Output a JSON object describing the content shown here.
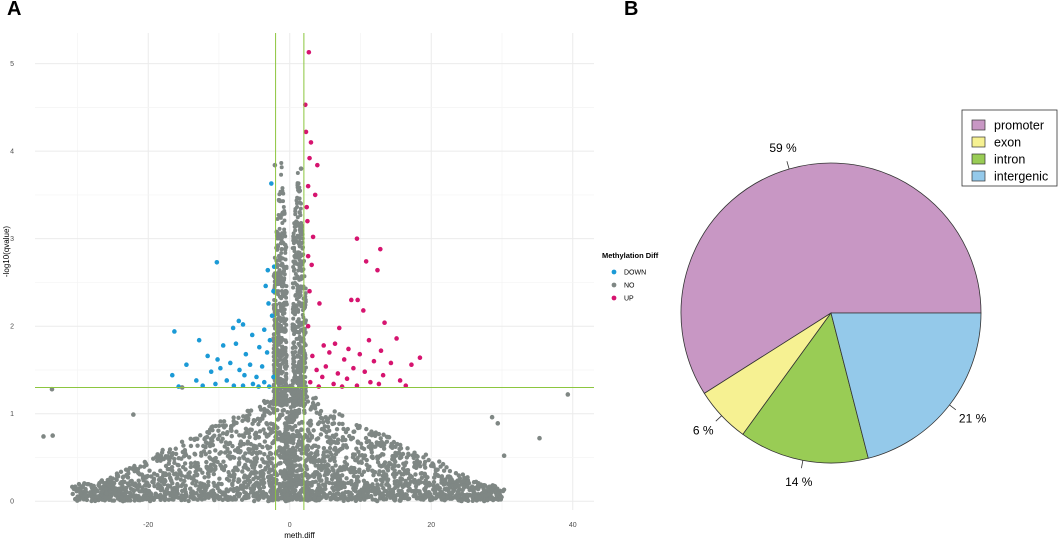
{
  "panels": {
    "a": "A",
    "b": "B"
  },
  "chart_data": [
    {
      "type": "scatter",
      "title": "",
      "xlabel": "meth.diff",
      "ylabel": "-log10(qvalue)",
      "xlim": [
        -36,
        43
      ],
      "ylim": [
        -0.1,
        5.35
      ],
      "x_ticks": [
        -20,
        0,
        20,
        40
      ],
      "y_ticks": [
        0,
        1,
        2,
        3,
        4,
        5
      ],
      "grid": true,
      "thresholds": {
        "vlines": [
          -2,
          2
        ],
        "hline": 1.3
      },
      "threshold_color": "#8cc63f",
      "legend": {
        "title": "Methylation Diff",
        "placement": "right",
        "entries": [
          {
            "label": "DOWN",
            "color": "#1b9ad6"
          },
          {
            "label": "NO",
            "color": "#7f8784"
          },
          {
            "label": "UP",
            "color": "#d6146f"
          }
        ]
      },
      "series": [
        {
          "name": "DOWN",
          "color": "#1b9ad6",
          "points": [
            [
              -2.6,
              3.63
            ],
            [
              -10.3,
              2.73
            ],
            [
              -2.2,
              2.68
            ],
            [
              -3.1,
              2.64
            ],
            [
              -3.4,
              2.46
            ],
            [
              -2.3,
              2.4
            ],
            [
              -3.0,
              2.26
            ],
            [
              -2.5,
              2.12
            ],
            [
              -7.2,
              2.06
            ],
            [
              -6.6,
              2.02
            ],
            [
              -8.0,
              1.98
            ],
            [
              -3.6,
              1.96
            ],
            [
              -16.3,
              1.94
            ],
            [
              -5.3,
              1.9
            ],
            [
              -12.8,
              1.84
            ],
            [
              -2.8,
              1.84
            ],
            [
              -7.6,
              1.8
            ],
            [
              -9.4,
              1.78
            ],
            [
              -4.3,
              1.76
            ],
            [
              -3.2,
              1.7
            ],
            [
              -6.2,
              1.68
            ],
            [
              -11.6,
              1.66
            ],
            [
              -10.2,
              1.62
            ],
            [
              -8.4,
              1.58
            ],
            [
              -14.6,
              1.56
            ],
            [
              -5.6,
              1.56
            ],
            [
              -3.9,
              1.54
            ],
            [
              -9.8,
              1.52
            ],
            [
              -7.1,
              1.5
            ],
            [
              -11.1,
              1.48
            ],
            [
              -16.6,
              1.44
            ],
            [
              -6.4,
              1.44
            ],
            [
              -4.7,
              1.42
            ],
            [
              -2.3,
              1.42
            ],
            [
              -13.2,
              1.38
            ],
            [
              -8.9,
              1.38
            ],
            [
              -3.6,
              1.36
            ],
            [
              -5.2,
              1.34
            ],
            [
              -10.5,
              1.34
            ],
            [
              -7.9,
              1.32
            ],
            [
              -12.3,
              1.32
            ],
            [
              -15.7,
              1.31
            ],
            [
              -2.9,
              1.31
            ],
            [
              -6.6,
              1.32
            ],
            [
              -4.4,
              1.31
            ]
          ]
        },
        {
          "name": "UP",
          "color": "#d6146f",
          "points": [
            [
              2.7,
              5.13
            ],
            [
              2.2,
              4.53
            ],
            [
              2.3,
              4.22
            ],
            [
              3.0,
              4.1
            ],
            [
              2.8,
              3.92
            ],
            [
              3.9,
              3.84
            ],
            [
              2.6,
              3.6
            ],
            [
              3.6,
              3.5
            ],
            [
              2.4,
              3.36
            ],
            [
              2.5,
              3.2
            ],
            [
              3.3,
              3.02
            ],
            [
              9.5,
              3.0
            ],
            [
              12.8,
              2.88
            ],
            [
              2.6,
              2.8
            ],
            [
              10.8,
              2.74
            ],
            [
              3.1,
              2.7
            ],
            [
              12.4,
              2.64
            ],
            [
              2.8,
              2.4
            ],
            [
              8.7,
              2.3
            ],
            [
              9.6,
              2.3
            ],
            [
              4.2,
              2.26
            ],
            [
              10.4,
              2.18
            ],
            [
              13.4,
              2.04
            ],
            [
              2.6,
              2.0
            ],
            [
              7.0,
              1.98
            ],
            [
              15.1,
              1.86
            ],
            [
              11.2,
              1.84
            ],
            [
              6.4,
              1.8
            ],
            [
              4.8,
              1.78
            ],
            [
              8.3,
              1.74
            ],
            [
              12.9,
              1.72
            ],
            [
              5.6,
              1.7
            ],
            [
              9.9,
              1.68
            ],
            [
              3.2,
              1.66
            ],
            [
              18.4,
              1.64
            ],
            [
              7.7,
              1.62
            ],
            [
              11.9,
              1.6
            ],
            [
              14.3,
              1.58
            ],
            [
              17.2,
              1.56
            ],
            [
              5.1,
              1.54
            ],
            [
              9.0,
              1.52
            ],
            [
              3.8,
              1.5
            ],
            [
              10.6,
              1.48
            ],
            [
              6.8,
              1.46
            ],
            [
              13.2,
              1.44
            ],
            [
              4.6,
              1.42
            ],
            [
              8.1,
              1.4
            ],
            [
              15.6,
              1.38
            ],
            [
              11.4,
              1.36
            ],
            [
              2.9,
              1.36
            ],
            [
              6.2,
              1.34
            ],
            [
              12.6,
              1.34
            ],
            [
              9.5,
              1.32
            ],
            [
              16.4,
              1.32
            ],
            [
              4.1,
              1.31
            ],
            [
              7.4,
              1.31
            ]
          ]
        },
        {
          "name": "NO",
          "color": "#7f8784",
          "points": [
            [
              -33.6,
              1.28
            ],
            [
              -22.1,
              0.99
            ],
            [
              -34.8,
              0.74
            ],
            [
              -33.5,
              0.75
            ],
            [
              -15.2,
              1.3
            ],
            [
              39.3,
              1.22
            ],
            [
              35.3,
              0.72
            ],
            [
              28.6,
              0.96
            ],
            [
              29.4,
              0.89
            ],
            [
              30.3,
              0.52
            ],
            [
              -2.1,
              3.84
            ],
            [
              1.6,
              3.8
            ],
            [
              -1.2,
              2.95
            ],
            [
              1.4,
              3.3
            ],
            [
              -0.6,
              2.4
            ],
            [
              0.7,
              2.8
            ],
            [
              -1.5,
              2.1
            ]
          ]
        }
      ],
      "density_cloud": "dense NO cloud, -log10 q from 0 to 1.3, centered at 0"
    },
    {
      "type": "pie",
      "title": "",
      "legend_placement": "top-right",
      "slices": [
        {
          "label": "promoter",
          "value": 59,
          "text": "59 %",
          "color": "#c897c4"
        },
        {
          "label": "exon",
          "value": 6,
          "text": "6 %",
          "color": "#f6f192"
        },
        {
          "label": "intron",
          "value": 14,
          "text": "14 %",
          "color": "#99cc55"
        },
        {
          "label": "intergenic",
          "value": 21,
          "text": "21 %",
          "color": "#94c9ea"
        }
      ]
    }
  ]
}
